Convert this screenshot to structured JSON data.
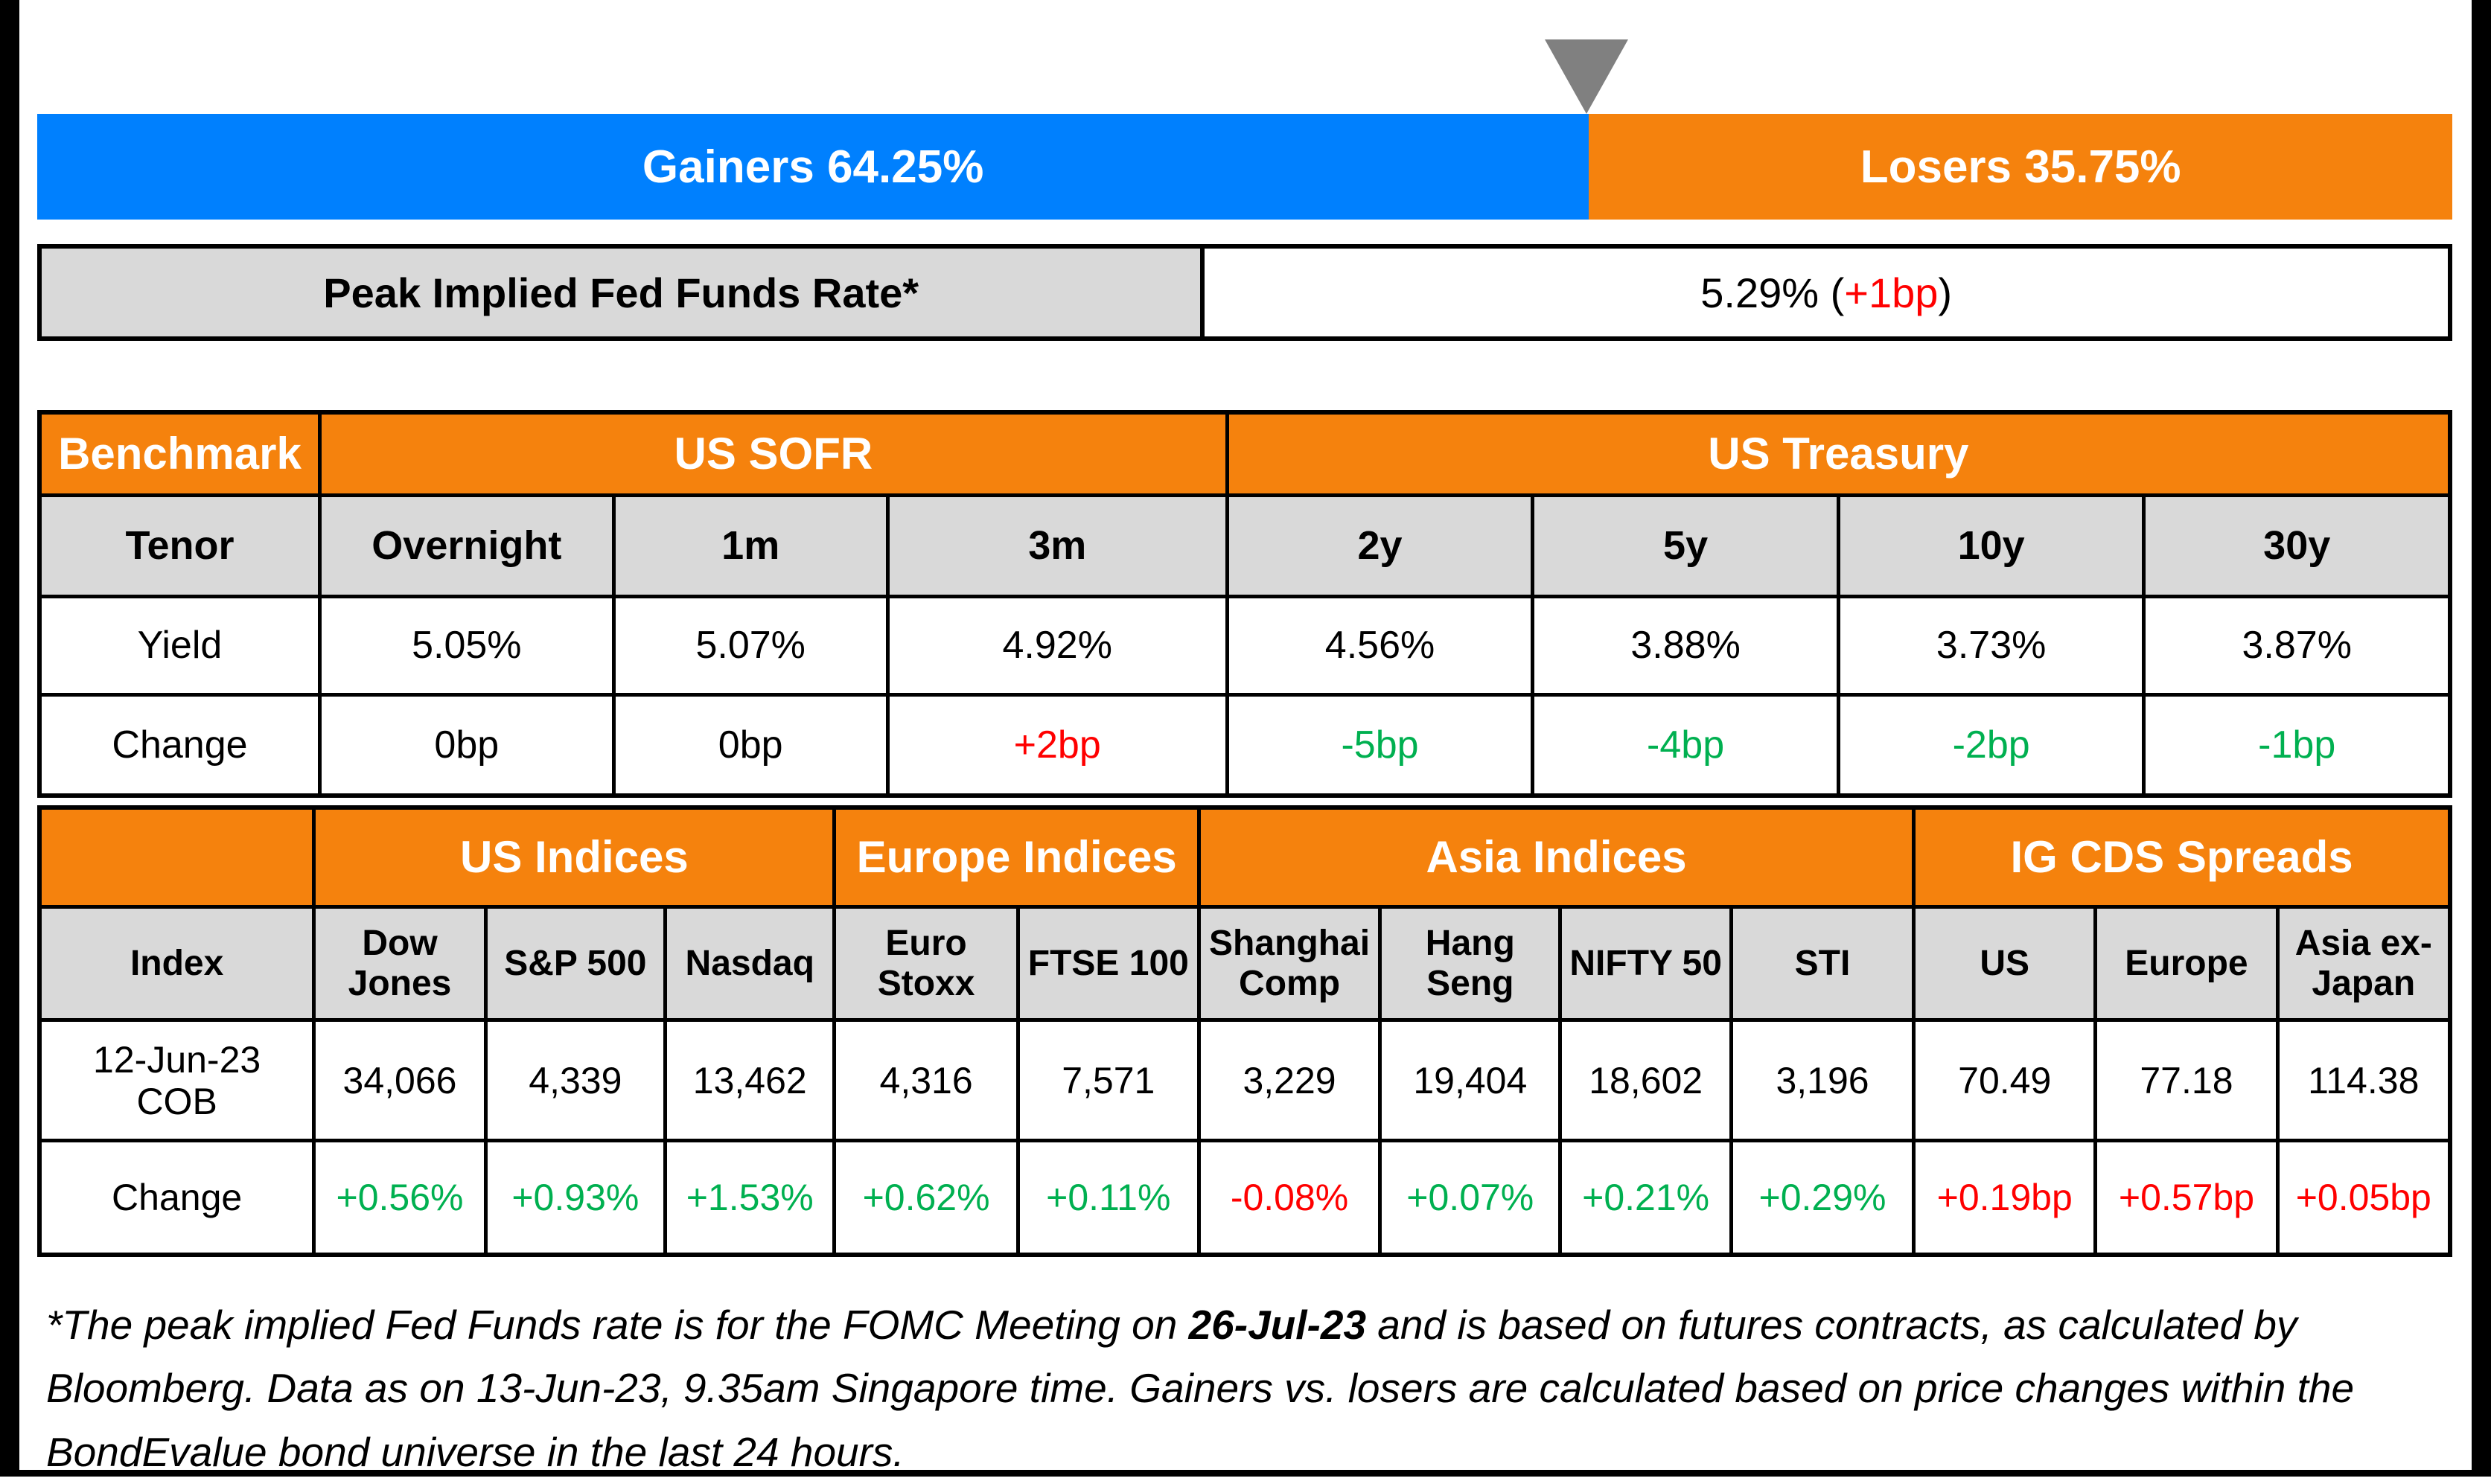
{
  "colors": {
    "gainers_blue": "#0080FE",
    "losers_orange": "#F5820D",
    "header_orange": "#F5820D",
    "gray_cell": "#D9D9D9",
    "positive_green": "#00B050",
    "negative_red": "#FF0000",
    "marker_gray": "#808080"
  },
  "top_bar": {
    "gainers_label": "Gainers 64.25%",
    "losers_label": "Losers 35.75%",
    "gainers_pct": 64.25,
    "losers_pct": 35.75
  },
  "peak_rate": {
    "label": "Peak Implied Fed Funds Rate*",
    "value_prefix": "5.29% (",
    "change": "+1bp",
    "value_suffix": ")"
  },
  "benchmark_table": {
    "corner_label": "Benchmark",
    "sections": [
      {
        "label": "US SOFR",
        "span": 3
      },
      {
        "label": "US Treasury",
        "span": 4
      }
    ],
    "row_labels": {
      "tenor": "Tenor",
      "yield": "Yield",
      "change": "Change"
    },
    "columns": [
      {
        "tenor": "Overnight",
        "yield": "5.05%",
        "change": "0bp",
        "change_color": "black"
      },
      {
        "tenor": "1m",
        "yield": "5.07%",
        "change": "0bp",
        "change_color": "black"
      },
      {
        "tenor": "3m",
        "yield": "4.92%",
        "change": "+2bp",
        "change_color": "red"
      },
      {
        "tenor": "2y",
        "yield": "4.56%",
        "change": "-5bp",
        "change_color": "green"
      },
      {
        "tenor": "5y",
        "yield": "3.88%",
        "change": "-4bp",
        "change_color": "green"
      },
      {
        "tenor": "10y",
        "yield": "3.73%",
        "change": "-2bp",
        "change_color": "green"
      },
      {
        "tenor": "30y",
        "yield": "3.87%",
        "change": "-1bp",
        "change_color": "green"
      }
    ]
  },
  "indices_table": {
    "corner_label": "",
    "sections": [
      {
        "label": "US Indices",
        "span": 3
      },
      {
        "label": "Europe Indices",
        "span": 2
      },
      {
        "label": "Asia Indices",
        "span": 4
      },
      {
        "label": "IG CDS Spreads",
        "span": 3
      }
    ],
    "row_labels": {
      "index": "Index",
      "cob": "12-Jun-23 COB",
      "change": "Change"
    },
    "columns": [
      {
        "name": "Dow Jones",
        "value": "34,066",
        "change": "+0.56%",
        "change_color": "green"
      },
      {
        "name": "S&P 500",
        "value": "4,339",
        "change": "+0.93%",
        "change_color": "green"
      },
      {
        "name": "Nasdaq",
        "value": "13,462",
        "change": "+1.53%",
        "change_color": "green"
      },
      {
        "name": "Euro Stoxx",
        "value": "4,316",
        "change": "+0.62%",
        "change_color": "green"
      },
      {
        "name": "FTSE 100",
        "value": "7,571",
        "change": "+0.11%",
        "change_color": "green"
      },
      {
        "name": "Shanghai Comp",
        "value": "3,229",
        "change": "-0.08%",
        "change_color": "red"
      },
      {
        "name": "Hang Seng",
        "value": "19,404",
        "change": "+0.07%",
        "change_color": "green"
      },
      {
        "name": "NIFTY 50",
        "value": "18,602",
        "change": "+0.21%",
        "change_color": "green"
      },
      {
        "name": "STI",
        "value": "3,196",
        "change": "+0.29%",
        "change_color": "green"
      },
      {
        "name": "US",
        "value": "70.49",
        "change": "+0.19bp",
        "change_color": "red"
      },
      {
        "name": "Europe",
        "value": "77.18",
        "change": "+0.57bp",
        "change_color": "red"
      },
      {
        "name": "Asia ex-Japan",
        "value": "114.38",
        "change": "+0.05bp",
        "change_color": "red"
      }
    ]
  },
  "footnote": {
    "pre": "*The peak implied Fed Funds rate is for the FOMC Meeting on ",
    "bold": "26-Jul-23",
    "post": " and is based on futures contracts, as calculated by Bloomberg. Data as on 13-Jun-23, 9.35am Singapore time. Gainers vs. losers are calculated based on price changes within the BondEvalue bond universe in the last 24 hours."
  },
  "chart_data": [
    {
      "type": "bar",
      "title": "Gainers vs Losers (last 24 hours)",
      "categories": [
        "Gainers",
        "Losers"
      ],
      "values": [
        64.25,
        35.75
      ],
      "unit": "%",
      "orientation": "horizontal-stacked",
      "colors": [
        "#0080FE",
        "#F5820D"
      ],
      "annotations": [
        "gray down-triangle marker at 64.25% boundary"
      ]
    },
    {
      "type": "table",
      "title": "Benchmark — US SOFR / US Treasury",
      "columns": [
        "Tenor",
        "Overnight",
        "1m",
        "3m",
        "2y",
        "5y",
        "10y",
        "30y"
      ],
      "rows": [
        [
          "Yield",
          "5.05%",
          "5.07%",
          "4.92%",
          "4.56%",
          "3.88%",
          "3.73%",
          "3.87%"
        ],
        [
          "Change",
          "0bp",
          "0bp",
          "+2bp",
          "-5bp",
          "-4bp",
          "-2bp",
          "-1bp"
        ]
      ]
    },
    {
      "type": "table",
      "title": "Indices & IG CDS Spreads",
      "columns": [
        "Index",
        "Dow Jones",
        "S&P 500",
        "Nasdaq",
        "Euro Stoxx",
        "FTSE 100",
        "Shanghai Comp",
        "Hang Seng",
        "NIFTY 50",
        "STI",
        "US",
        "Europe",
        "Asia ex-Japan"
      ],
      "rows": [
        [
          "12-Jun-23 COB",
          "34,066",
          "4,339",
          "13,462",
          "4,316",
          "7,571",
          "3,229",
          "19,404",
          "18,602",
          "3,196",
          "70.49",
          "77.18",
          "114.38"
        ],
        [
          "Change",
          "+0.56%",
          "+0.93%",
          "+1.53%",
          "+0.62%",
          "+0.11%",
          "-0.08%",
          "+0.07%",
          "+0.21%",
          "+0.29%",
          "+0.19bp",
          "+0.57bp",
          "+0.05bp"
        ]
      ]
    },
    {
      "type": "table",
      "title": "Peak Implied Fed Funds Rate*",
      "columns": [
        "Peak Implied Fed Funds Rate*"
      ],
      "rows": [
        [
          "5.29% (+1bp)"
        ]
      ]
    }
  ]
}
